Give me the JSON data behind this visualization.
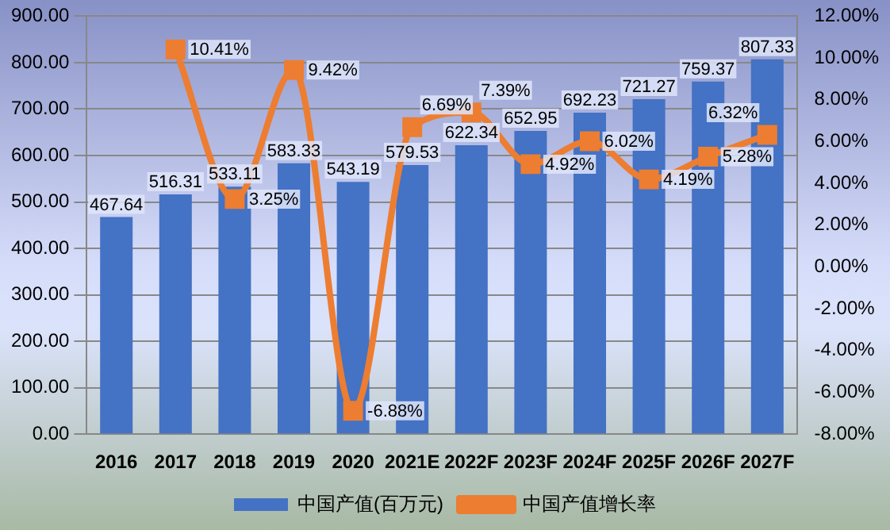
{
  "chart_data": {
    "type": "bar",
    "categories": [
      "2016",
      "2017",
      "2018",
      "2019",
      "2020",
      "2021E",
      "2022F",
      "2023F",
      "2024F",
      "2025F",
      "2026F",
      "2027F"
    ],
    "series": [
      {
        "name": "中国产值(百万元)",
        "color": "#4472c4",
        "values": [
          467.64,
          516.31,
          533.11,
          583.33,
          543.19,
          579.53,
          622.34,
          652.95,
          692.23,
          721.27,
          759.37,
          807.33
        ],
        "value_labels": [
          "467.64",
          "516.31",
          "533.11",
          "583.33",
          "543.19",
          "579.53",
          "622.34",
          "652.95",
          "692.23",
          "721.27",
          "759.37",
          "807.33"
        ]
      },
      {
        "name": "中国产值增长率",
        "type": "line",
        "axis": "y2",
        "color": "#ed7d31",
        "marker": "square",
        "values": [
          null,
          10.41,
          3.25,
          9.42,
          -6.88,
          6.69,
          7.39,
          4.92,
          6.02,
          4.19,
          5.28,
          6.32
        ],
        "value_labels": [
          null,
          "10.41%",
          "3.25%",
          "9.42%",
          "-6.88%",
          "6.69%",
          "7.39%",
          "4.92%",
          "6.02%",
          "4.19%",
          "5.28%",
          "6.32%"
        ]
      }
    ],
    "ylim": [
      0,
      900
    ],
    "yticks": [
      {
        "value": 0,
        "label": "0.00"
      },
      {
        "value": 100,
        "label": "100.00"
      },
      {
        "value": 200,
        "label": "200.00"
      },
      {
        "value": 300,
        "label": "300.00"
      },
      {
        "value": 400,
        "label": "400.00"
      },
      {
        "value": 500,
        "label": "500.00"
      },
      {
        "value": 600,
        "label": "600.00"
      },
      {
        "value": 700,
        "label": "700.00"
      },
      {
        "value": 800,
        "label": "800.00"
      },
      {
        "value": 900,
        "label": "900.00"
      }
    ],
    "y2lim": [
      -8,
      12
    ],
    "y2ticks": [
      {
        "value": -8,
        "label": "-8.00%"
      },
      {
        "value": -6,
        "label": "-6.00%"
      },
      {
        "value": -4,
        "label": "-4.00%"
      },
      {
        "value": -2,
        "label": "-2.00%"
      },
      {
        "value": 0,
        "label": "0.00%"
      },
      {
        "value": 2,
        "label": "2.00%"
      },
      {
        "value": 4,
        "label": "4.00%"
      },
      {
        "value": 6,
        "label": "6.00%"
      },
      {
        "value": 8,
        "label": "8.00%"
      },
      {
        "value": 10,
        "label": "10.00%"
      },
      {
        "value": 12,
        "label": "12.00%"
      }
    ],
    "grid": "y",
    "legend": "bottom"
  }
}
